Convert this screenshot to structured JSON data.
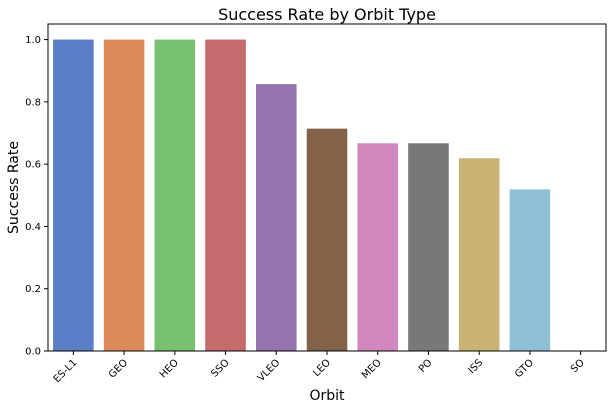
{
  "chart_data": {
    "type": "bar",
    "title": "Success Rate by Orbit Type",
    "xlabel": "Orbit",
    "ylabel": "Success Rate",
    "categories": [
      "ES-L1",
      "GEO",
      "HEO",
      "SSO",
      "VLEO",
      "LEO",
      "MEO",
      "PO",
      "ISS",
      "GTO",
      "SO"
    ],
    "values": [
      1.0,
      1.0,
      1.0,
      1.0,
      0.857,
      0.714,
      0.667,
      0.667,
      0.619,
      0.519,
      0.0
    ],
    "colors": [
      "#5a7ec6",
      "#dc8a5c",
      "#77c170",
      "#c56b6c",
      "#9575b0",
      "#82634a",
      "#d288be",
      "#787878",
      "#c8b374",
      "#8fc1d6",
      "#5a7ec6"
    ],
    "ylim": [
      0,
      1.05
    ],
    "yticks": [
      "0.0",
      "0.2",
      "0.4",
      "0.6",
      "0.8",
      "1.0"
    ],
    "grid": false,
    "legend": "none"
  }
}
